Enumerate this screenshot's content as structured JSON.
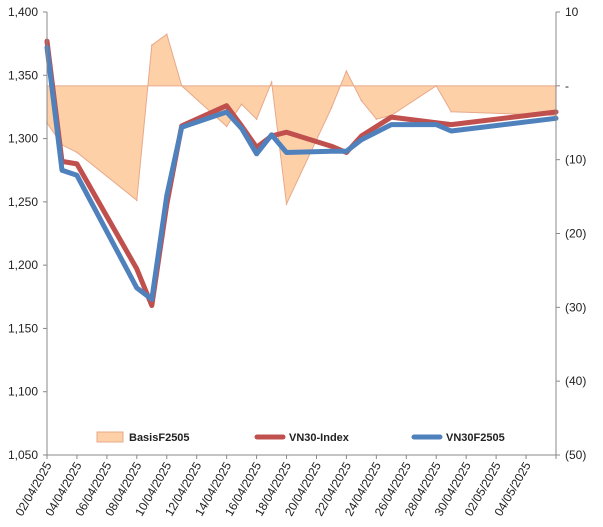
{
  "chart_data": {
    "type": "line",
    "title": "",
    "xlabel": "",
    "ylabel": "",
    "ylim": [
      1050,
      1400
    ],
    "y2lim": [
      -50,
      10
    ],
    "yticks": [
      "1,400",
      "1,350",
      "1,300",
      "1,250",
      "1,200",
      "1,150",
      "1,100",
      "1,050"
    ],
    "yticks_values": [
      1400,
      1350,
      1300,
      1250,
      1200,
      1150,
      1100,
      1050
    ],
    "y2ticks": [
      "10",
      "-",
      "(10)",
      "(20)",
      "(30)",
      "(40)",
      "(50)"
    ],
    "y2ticks_values": [
      10,
      0,
      -10,
      -20,
      -30,
      -40,
      -50
    ],
    "xlim": [
      "2025-04-02",
      "2025-05-06"
    ],
    "xticks": [
      "02/04/2025",
      "04/04/2025",
      "06/04/2025",
      "08/04/2025",
      "10/04/2025",
      "12/04/2025",
      "14/04/2025",
      "16/04/2025",
      "18/04/2025",
      "20/04/2025",
      "22/04/2025",
      "24/04/2025",
      "26/04/2025",
      "28/04/2025",
      "30/04/2025",
      "02/05/2025",
      "04/05/2025"
    ],
    "xticks_dates": [
      "2025-04-02",
      "2025-04-04",
      "2025-04-06",
      "2025-04-08",
      "2025-04-10",
      "2025-04-12",
      "2025-04-14",
      "2025-04-16",
      "2025-04-18",
      "2025-04-20",
      "2025-04-22",
      "2025-04-24",
      "2025-04-26",
      "2025-04-28",
      "2025-04-30",
      "2025-05-02",
      "2025-05-04"
    ],
    "legend_position": "bottom",
    "grid": false,
    "series": [
      {
        "name": "BasisF2505",
        "kind": "area",
        "axis": "right",
        "color": "#fdd0a8",
        "stroke": "#e8a98a",
        "points": [
          {
            "x": "2025-04-02",
            "y": -5
          },
          {
            "x": "2025-04-03",
            "y": -8
          },
          {
            "x": "2025-04-04",
            "y": -9
          },
          {
            "x": "2025-04-08",
            "y": -15.5
          },
          {
            "x": "2025-04-09",
            "y": 5.5
          },
          {
            "x": "2025-04-10",
            "y": 7
          },
          {
            "x": "2025-04-11",
            "y": 0
          },
          {
            "x": "2025-04-14",
            "y": -5.5
          },
          {
            "x": "2025-04-15",
            "y": -2.5
          },
          {
            "x": "2025-04-16",
            "y": -4.5
          },
          {
            "x": "2025-04-17",
            "y": 0.5
          },
          {
            "x": "2025-04-18",
            "y": -16
          },
          {
            "x": "2025-04-21",
            "y": -3
          },
          {
            "x": "2025-04-22",
            "y": 2
          },
          {
            "x": "2025-04-23",
            "y": -2
          },
          {
            "x": "2025-04-24",
            "y": -4.5
          },
          {
            "x": "2025-04-25",
            "y": -4
          },
          {
            "x": "2025-04-28",
            "y": 0
          },
          {
            "x": "2025-04-29",
            "y": -3.5
          },
          {
            "x": "2025-05-06",
            "y": -4
          }
        ]
      },
      {
        "name": "VN30-Index",
        "kind": "line",
        "axis": "left",
        "color": "#c0504d",
        "points": [
          {
            "x": "2025-04-02",
            "y": 1377
          },
          {
            "x": "2025-04-03",
            "y": 1282
          },
          {
            "x": "2025-04-04",
            "y": 1280
          },
          {
            "x": "2025-04-08",
            "y": 1197
          },
          {
            "x": "2025-04-09",
            "y": 1168
          },
          {
            "x": "2025-04-10",
            "y": 1248
          },
          {
            "x": "2025-04-11",
            "y": 1310
          },
          {
            "x": "2025-04-14",
            "y": 1326
          },
          {
            "x": "2025-04-15",
            "y": 1310
          },
          {
            "x": "2025-04-16",
            "y": 1293
          },
          {
            "x": "2025-04-17",
            "y": 1302
          },
          {
            "x": "2025-04-18",
            "y": 1305
          },
          {
            "x": "2025-04-21",
            "y": 1294
          },
          {
            "x": "2025-04-22",
            "y": 1289
          },
          {
            "x": "2025-04-23",
            "y": 1302
          },
          {
            "x": "2025-04-25",
            "y": 1317
          },
          {
            "x": "2025-04-29",
            "y": 1311
          },
          {
            "x": "2025-05-06",
            "y": 1321
          }
        ]
      },
      {
        "name": "VN30F2505",
        "kind": "line",
        "axis": "left",
        "color": "#4f81bd",
        "points": [
          {
            "x": "2025-04-02",
            "y": 1372
          },
          {
            "x": "2025-04-03",
            "y": 1275
          },
          {
            "x": "2025-04-04",
            "y": 1271
          },
          {
            "x": "2025-04-08",
            "y": 1182
          },
          {
            "x": "2025-04-09",
            "y": 1173
          },
          {
            "x": "2025-04-10",
            "y": 1255
          },
          {
            "x": "2025-04-11",
            "y": 1309
          },
          {
            "x": "2025-04-14",
            "y": 1321
          },
          {
            "x": "2025-04-15",
            "y": 1308
          },
          {
            "x": "2025-04-16",
            "y": 1288
          },
          {
            "x": "2025-04-17",
            "y": 1303
          },
          {
            "x": "2025-04-18",
            "y": 1289
          },
          {
            "x": "2025-04-21",
            "y": 1290
          },
          {
            "x": "2025-04-22",
            "y": 1290
          },
          {
            "x": "2025-04-23",
            "y": 1299
          },
          {
            "x": "2025-04-25",
            "y": 1311
          },
          {
            "x": "2025-04-28",
            "y": 1311
          },
          {
            "x": "2025-04-29",
            "y": 1306
          },
          {
            "x": "2025-05-06",
            "y": 1316
          }
        ]
      }
    ]
  }
}
